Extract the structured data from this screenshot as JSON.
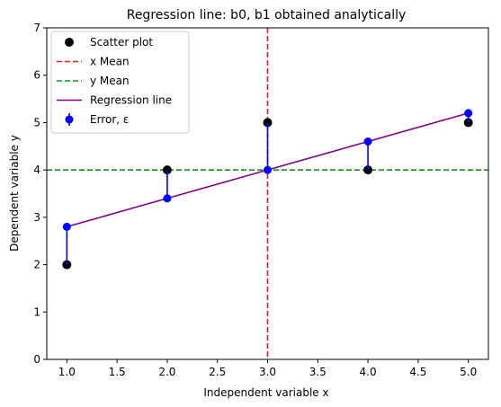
{
  "chart_data": {
    "type": "scatter",
    "title": "Regression line: b0, b1 obtained analytically",
    "xlabel": "Independent variable x",
    "ylabel": "Dependent variable  y",
    "xlim": [
      0.8,
      5.2
    ],
    "ylim": [
      0,
      7
    ],
    "xticks": [
      "1.0",
      "1.5",
      "2.0",
      "2.5",
      "3.0",
      "3.5",
      "4.0",
      "4.5",
      "5.0"
    ],
    "yticks": [
      "0",
      "1",
      "2",
      "3",
      "4",
      "5",
      "6",
      "7"
    ],
    "grid": false,
    "legend_position": "top-left",
    "x_mean": 3.0,
    "y_mean": 4.0,
    "regression": {
      "b0": 2.2,
      "b1": 0.6
    },
    "series": [
      {
        "name": "Scatter plot",
        "kind": "points",
        "color": "#000000",
        "x": [
          1,
          2,
          3,
          4,
          5
        ],
        "y": [
          2,
          4,
          5,
          4,
          5
        ]
      },
      {
        "name": "x Mean",
        "kind": "vline-dashed",
        "color": "#e31a1c"
      },
      {
        "name": "y Mean",
        "kind": "hline-dashed",
        "color": "#1a8f1a"
      },
      {
        "name": "Regression line",
        "kind": "line",
        "color": "#800080",
        "x": [
          1,
          5
        ],
        "y": [
          2.8,
          5.2
        ]
      },
      {
        "name": "Error,  ε",
        "kind": "errorbar",
        "color": "#0000ff",
        "x": [
          1,
          2,
          3,
          4,
          5
        ],
        "y": [
          2.8,
          3.4,
          4.0,
          4.6,
          5.2
        ],
        "observed": [
          2,
          4,
          5,
          4,
          5
        ]
      }
    ]
  }
}
